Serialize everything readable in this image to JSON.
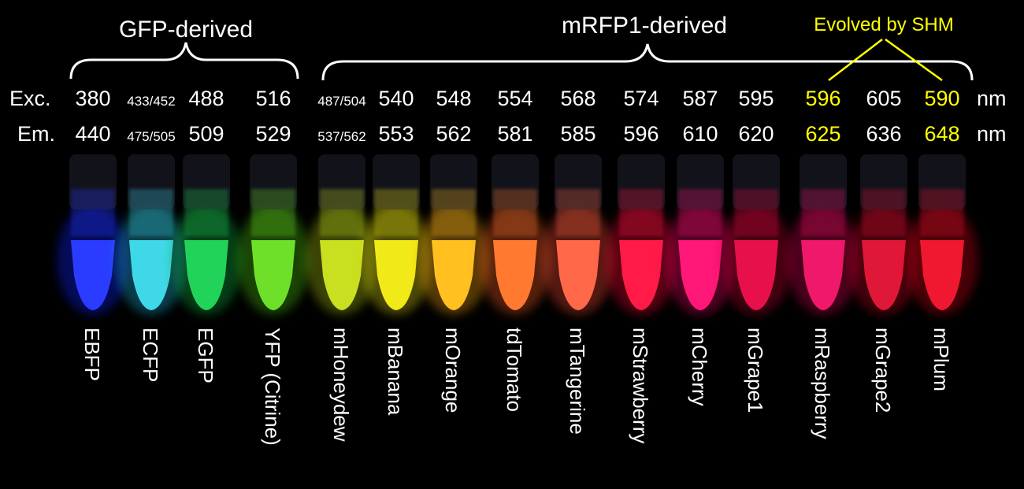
{
  "groups": {
    "gfp_label": "GFP-derived",
    "mrfp_label": "mRFP1-derived",
    "shm_label": "Evolved by SHM"
  },
  "rows": {
    "exc_label": "Exc.",
    "em_label": "Em.",
    "unit": "nm"
  },
  "colors": {
    "background": "#000000",
    "text": "#ffffff",
    "highlight": "#ffff00"
  },
  "tubes": [
    {
      "name": "EBFP",
      "exc": "380",
      "em": "440",
      "small": false,
      "highlight": false,
      "color": "#2a3cff",
      "glow": "#1020ff"
    },
    {
      "name": "ECFP",
      "exc": "433/452",
      "em": "475/505",
      "small": true,
      "highlight": false,
      "color": "#3fd8e8",
      "glow": "#1fb0d0"
    },
    {
      "name": "EGFP",
      "exc": "488",
      "em": "509",
      "small": false,
      "highlight": false,
      "color": "#22d35a",
      "glow": "#10b040"
    },
    {
      "name": "YFP (Citrine)",
      "exc": "516",
      "em": "529",
      "small": false,
      "highlight": false,
      "color": "#6ee02a",
      "glow": "#4cc010"
    },
    {
      "name": "mHoneydew",
      "exc": "487/504",
      "em": "537/562",
      "small": true,
      "highlight": false,
      "color": "#c8e020",
      "glow": "#a8c010"
    },
    {
      "name": "mBanana",
      "exc": "540",
      "em": "553",
      "small": false,
      "highlight": false,
      "color": "#f2ea18",
      "glow": "#d8d010"
    },
    {
      "name": "mOrange",
      "exc": "548",
      "em": "562",
      "small": false,
      "highlight": false,
      "color": "#ffc020",
      "glow": "#f0a010"
    },
    {
      "name": "tdTomato",
      "exc": "554",
      "em": "581",
      "small": false,
      "highlight": false,
      "color": "#ff7a30",
      "glow": "#f05a20"
    },
    {
      "name": "mTangerine",
      "exc": "568",
      "em": "585",
      "small": false,
      "highlight": false,
      "color": "#ff6848",
      "glow": "#f04830"
    },
    {
      "name": "mStrawberry",
      "exc": "574",
      "em": "596",
      "small": false,
      "highlight": false,
      "color": "#ff1a48",
      "glow": "#f00030"
    },
    {
      "name": "mCherry",
      "exc": "587",
      "em": "610",
      "small": false,
      "highlight": false,
      "color": "#ff1878",
      "glow": "#e00060"
    },
    {
      "name": "mGrape1",
      "exc": "595",
      "em": "620",
      "small": false,
      "highlight": false,
      "color": "#e8104a",
      "glow": "#c00030"
    },
    {
      "name": "mRaspberry",
      "exc": "596",
      "em": "625",
      "small": false,
      "highlight": true,
      "color": "#f0186a",
      "glow": "#d00050"
    },
    {
      "name": "mGrape2",
      "exc": "605",
      "em": "636",
      "small": false,
      "highlight": false,
      "color": "#e01838",
      "glow": "#c00020"
    },
    {
      "name": "mPlum",
      "exc": "590",
      "em": "648",
      "small": false,
      "highlight": true,
      "color": "#f01830",
      "glow": "#d00018"
    }
  ]
}
